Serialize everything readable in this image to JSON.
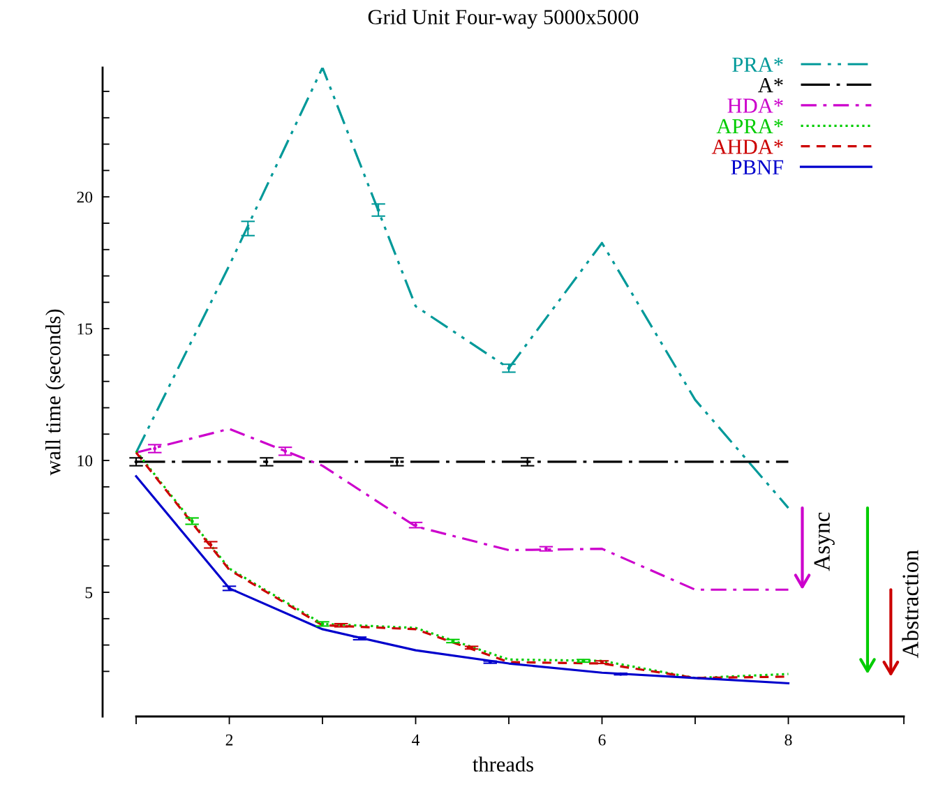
{
  "chart_data": {
    "type": "line",
    "title": "Grid Unit Four-way 5000x5000",
    "xlabel": "threads",
    "ylabel": "wall time (seconds)",
    "x": [
      1,
      2,
      3,
      4,
      5,
      6,
      7,
      8
    ],
    "series": [
      {
        "name": "PRA*",
        "color": "#009999",
        "line_style": "dashdotdot",
        "values": [
          10.3,
          17.4,
          24.9,
          15.85,
          13.5,
          18.25,
          12.3,
          8.2
        ]
      },
      {
        "name": "A*",
        "color": "#000000",
        "line_style": "longdashdot",
        "values": [
          9.95,
          9.95,
          9.95,
          9.95,
          9.95,
          9.95,
          9.95,
          9.95
        ]
      },
      {
        "name": "HDA*",
        "color": "#cc00cc",
        "line_style": "dashdot",
        "values": [
          10.3,
          11.2,
          9.8,
          7.5,
          6.6,
          6.65,
          5.1,
          5.1
        ]
      },
      {
        "name": "APRA*",
        "color": "#00cc00",
        "line_style": "dotted",
        "values": [
          10.35,
          5.9,
          3.8,
          3.65,
          2.45,
          2.4,
          1.75,
          1.9
        ]
      },
      {
        "name": "AHDA*",
        "color": "#cc0000",
        "line_style": "dashed",
        "values": [
          10.3,
          5.85,
          3.75,
          3.6,
          2.35,
          2.3,
          1.75,
          1.8
        ]
      },
      {
        "name": "PBNF",
        "color": "#0000cc",
        "line_style": "solid",
        "values": [
          9.4,
          5.15,
          3.6,
          2.8,
          2.3,
          1.95,
          1.75,
          1.55
        ]
      },
      {
        "type": "scatter",
        "marker": "circle",
        "color": "#009999",
        "x": [
          2.2,
          3.6,
          5.0
        ],
        "values": [
          18.8,
          19.5,
          13.5
        ],
        "errors": [
          0.27,
          0.23,
          0.15
        ]
      },
      {
        "type": "scatter",
        "marker": "circle",
        "color": "#000000",
        "x": [
          1.0,
          2.4,
          3.8,
          5.2
        ],
        "values": [
          9.95,
          9.95,
          9.95,
          9.95
        ],
        "errors": [
          0.15,
          0.15,
          0.15,
          0.15
        ]
      },
      {
        "type": "scatter",
        "marker": "circle",
        "color": "#cc00cc",
        "x": [
          1.2,
          2.6,
          4.0,
          5.4
        ],
        "values": [
          10.45,
          10.35,
          7.55,
          6.65
        ],
        "errors": [
          0.15,
          0.15,
          0.1,
          0.08
        ]
      },
      {
        "type": "scatter",
        "marker": "circle",
        "color": "#00cc00",
        "x": [
          1.6,
          3.0,
          4.4,
          5.8
        ],
        "values": [
          7.7,
          3.8,
          3.15,
          2.4
        ],
        "errors": [
          0.12,
          0.08,
          0.06,
          0.05
        ]
      },
      {
        "type": "scatter",
        "marker": "circle",
        "color": "#cc0000",
        "x": [
          1.8,
          3.2,
          4.6,
          6.0
        ],
        "values": [
          6.8,
          3.75,
          2.9,
          2.35
        ],
        "errors": [
          0.12,
          0.06,
          0.05,
          0.05
        ]
      },
      {
        "type": "scatter",
        "marker": "circle",
        "color": "#0000cc",
        "x": [
          2.0,
          3.4,
          4.8,
          6.2
        ],
        "values": [
          5.15,
          3.25,
          2.35,
          1.9
        ],
        "errors": [
          0.08,
          0.05,
          0.04,
          0.03
        ]
      }
    ],
    "xlim": [
      0.64,
      9.24
    ],
    "xticks": [
      {
        "value": 1,
        "label": null
      },
      2,
      {
        "value": 3,
        "label": null
      },
      4,
      {
        "value": 5,
        "label": null
      },
      6,
      {
        "value": 7,
        "label": null
      },
      8,
      {
        "value": 9.24,
        "label": null
      }
    ],
    "ylim": [
      0.29,
      24.9
    ],
    "yticks": [
      {
        "value": 2,
        "label": null
      },
      {
        "value": 3,
        "label": null
      },
      {
        "value": 4,
        "label": null
      },
      5,
      {
        "value": 6,
        "label": null
      },
      {
        "value": 7,
        "label": null
      },
      {
        "value": 8,
        "label": null
      },
      {
        "value": 9,
        "label": null
      },
      10,
      {
        "value": 11,
        "label": null
      },
      {
        "value": 12,
        "label": null
      },
      {
        "value": 13,
        "label": null
      },
      {
        "value": 14,
        "label": null
      },
      15,
      {
        "value": 16,
        "label": null
      },
      {
        "value": 17,
        "label": null
      },
      {
        "value": 18,
        "label": null
      },
      {
        "value": 19,
        "label": null
      },
      20,
      {
        "value": 21,
        "label": null
      },
      {
        "value": 22,
        "label": null
      },
      {
        "value": 23,
        "label": null
      },
      {
        "value": 24,
        "label": null
      }
    ],
    "annotations": [
      "Async",
      "Abstraction"
    ],
    "legend": "top right",
    "grid": false
  }
}
